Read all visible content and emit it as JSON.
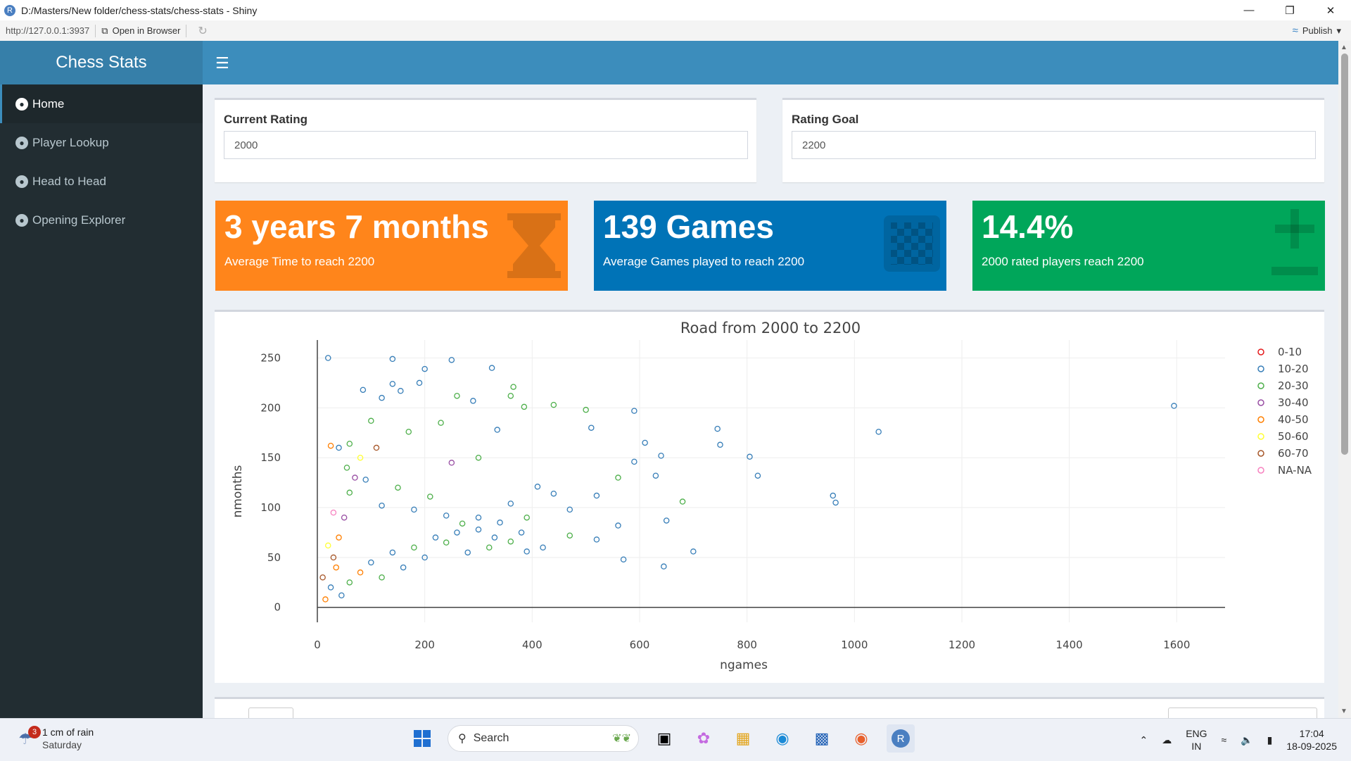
{
  "window": {
    "title": "D:/Masters/New folder/chess-stats/chess-stats - Shiny",
    "url": "http://127.0.0.1:3937",
    "open_in_browser": "Open in Browser",
    "publish": "Publish"
  },
  "sidebar": {
    "brand": "Chess Stats",
    "items": [
      {
        "label": "Home",
        "active": true
      },
      {
        "label": "Player Lookup",
        "active": false
      },
      {
        "label": "Head to Head",
        "active": false
      },
      {
        "label": "Opening Explorer",
        "active": false
      }
    ]
  },
  "inputs": {
    "current_rating": {
      "label": "Current Rating",
      "value": "2000"
    },
    "rating_goal": {
      "label": "Rating Goal",
      "value": "2200"
    }
  },
  "valueboxes": [
    {
      "value": "3 years 7 months",
      "subtitle": "Average Time to reach 2200",
      "color": "#ff851b",
      "icon": "hourglass-icon"
    },
    {
      "value": "139 Games",
      "subtitle": "Average Games played to reach 2200",
      "color": "#0073b7",
      "icon": "chessboard-icon"
    },
    {
      "value": "14.4%",
      "subtitle": "2000 rated players reach 2200",
      "color": "#00a65a",
      "icon": "plus-minus-icon"
    }
  ],
  "chart_data": {
    "type": "scatter",
    "title": "Road from 2000 to 2200",
    "xlabel": "ngames",
    "ylabel": "nmonths",
    "xlim": [
      0,
      1690
    ],
    "ylim": [
      -15,
      268
    ],
    "xticks": [
      0,
      200,
      400,
      600,
      800,
      1000,
      1200,
      1400,
      1600
    ],
    "yticks": [
      0,
      50,
      100,
      150,
      200,
      250
    ],
    "legend_position": "right",
    "series": [
      {
        "name": "0-10",
        "color": "#e41a1c"
      },
      {
        "name": "10-20",
        "color": "#377eb8"
      },
      {
        "name": "20-30",
        "color": "#4daf4a"
      },
      {
        "name": "30-40",
        "color": "#984ea3"
      },
      {
        "name": "40-50",
        "color": "#ff7f00"
      },
      {
        "name": "50-60",
        "color": "#ffff33"
      },
      {
        "name": "60-70",
        "color": "#a65628"
      },
      {
        "name": "NA-NA",
        "color": "#f781bf"
      }
    ],
    "points": [
      [
        20,
        250,
        1
      ],
      [
        140,
        249,
        1
      ],
      [
        250,
        248,
        1
      ],
      [
        325,
        240,
        1
      ],
      [
        200,
        239,
        1
      ],
      [
        190,
        225,
        1
      ],
      [
        140,
        224,
        1
      ],
      [
        85,
        218,
        1
      ],
      [
        155,
        217,
        1
      ],
      [
        365,
        221,
        2
      ],
      [
        120,
        210,
        1
      ],
      [
        260,
        212,
        2
      ],
      [
        290,
        207,
        1
      ],
      [
        360,
        212,
        2
      ],
      [
        440,
        203,
        2
      ],
      [
        385,
        201,
        2
      ],
      [
        510,
        180,
        1
      ],
      [
        590,
        197,
        1
      ],
      [
        500,
        198,
        2
      ],
      [
        745,
        179,
        1
      ],
      [
        1045,
        176,
        1
      ],
      [
        1595,
        202,
        1
      ],
      [
        610,
        165,
        1
      ],
      [
        750,
        163,
        1
      ],
      [
        805,
        151,
        1
      ],
      [
        640,
        152,
        1
      ],
      [
        590,
        146,
        1
      ],
      [
        820,
        132,
        1
      ],
      [
        630,
        132,
        1
      ],
      [
        560,
        130,
        2
      ],
      [
        960,
        112,
        1
      ],
      [
        965,
        105,
        1
      ],
      [
        680,
        106,
        2
      ],
      [
        650,
        87,
        1
      ],
      [
        470,
        98,
        1
      ],
      [
        520,
        112,
        1
      ],
      [
        410,
        121,
        1
      ],
      [
        440,
        114,
        1
      ],
      [
        560,
        82,
        1
      ],
      [
        700,
        56,
        1
      ],
      [
        645,
        41,
        1
      ],
      [
        570,
        48,
        1
      ],
      [
        520,
        68,
        1
      ],
      [
        470,
        72,
        2
      ],
      [
        420,
        60,
        1
      ],
      [
        390,
        90,
        2
      ],
      [
        360,
        104,
        1
      ],
      [
        300,
        150,
        2
      ],
      [
        230,
        185,
        2
      ],
      [
        170,
        176,
        2
      ],
      [
        100,
        187,
        2
      ],
      [
        60,
        164,
        2
      ],
      [
        40,
        160,
        1
      ],
      [
        25,
        162,
        4
      ],
      [
        110,
        160,
        6
      ],
      [
        80,
        150,
        5
      ],
      [
        250,
        145,
        3
      ],
      [
        335,
        178,
        1
      ],
      [
        40,
        70,
        4
      ],
      [
        30,
        50,
        6
      ],
      [
        50,
        90,
        3
      ],
      [
        60,
        115,
        2
      ],
      [
        90,
        128,
        1
      ],
      [
        120,
        102,
        1
      ],
      [
        150,
        120,
        2
      ],
      [
        180,
        98,
        1
      ],
      [
        210,
        111,
        2
      ],
      [
        240,
        92,
        1
      ],
      [
        270,
        84,
        2
      ],
      [
        300,
        78,
        1
      ],
      [
        330,
        70,
        1
      ],
      [
        360,
        66,
        2
      ],
      [
        390,
        56,
        1
      ],
      [
        15,
        8,
        4
      ],
      [
        25,
        20,
        1
      ],
      [
        10,
        30,
        6
      ],
      [
        35,
        40,
        4
      ],
      [
        45,
        12,
        1
      ],
      [
        60,
        25,
        2
      ],
      [
        80,
        35,
        4
      ],
      [
        100,
        45,
        1
      ],
      [
        120,
        30,
        2
      ],
      [
        140,
        55,
        1
      ],
      [
        160,
        40,
        1
      ],
      [
        180,
        60,
        2
      ],
      [
        200,
        50,
        1
      ],
      [
        220,
        70,
        1
      ],
      [
        240,
        65,
        2
      ],
      [
        260,
        75,
        1
      ],
      [
        280,
        55,
        1
      ],
      [
        300,
        90,
        1
      ],
      [
        320,
        60,
        2
      ],
      [
        340,
        85,
        1
      ],
      [
        380,
        75,
        1
      ],
      [
        20,
        62,
        5
      ],
      [
        30,
        95,
        7
      ],
      [
        70,
        130,
        3
      ],
      [
        55,
        140,
        2
      ]
    ]
  },
  "taskbar": {
    "weather_badge": "3",
    "weather_line1": "1 cm of rain",
    "weather_line2": "Saturday",
    "search_placeholder": "Search",
    "lang1": "ENG",
    "lang2": "IN",
    "time": "17:04",
    "date": "18-09-2025"
  }
}
